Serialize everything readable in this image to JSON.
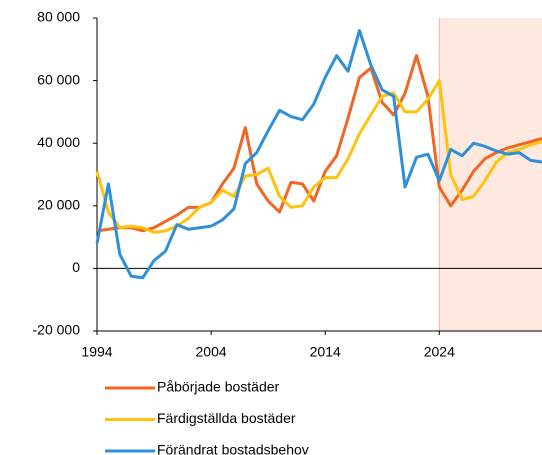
{
  "chart_data": {
    "type": "line",
    "x": [
      1994,
      1995,
      1996,
      1997,
      1998,
      1999,
      2000,
      2001,
      2002,
      2003,
      2004,
      2005,
      2006,
      2007,
      2008,
      2009,
      2010,
      2011,
      2012,
      2013,
      2014,
      2015,
      2016,
      2017,
      2018,
      2019,
      2020,
      2021,
      2022,
      2023,
      2024,
      2025,
      2026,
      2027,
      2028,
      2029,
      2030,
      2031,
      2032,
      2033
    ],
    "series": [
      {
        "name": "Påbörjade bostäder",
        "color": "#f26522",
        "values": [
          12000,
          12500,
          13000,
          13000,
          12000,
          13000,
          15000,
          17000,
          19500,
          19500,
          21000,
          27000,
          32000,
          45000,
          27000,
          21500,
          18000,
          27500,
          27000,
          21500,
          31000,
          36000,
          48000,
          61000,
          64000,
          53000,
          49000,
          56000,
          68000,
          55000,
          26000,
          20000,
          25000,
          31000,
          35000,
          37000,
          38500,
          39500,
          40500,
          41500
        ]
      },
      {
        "name": "Färdigställda bostäder",
        "color": "#ffc20e",
        "values": [
          31000,
          18000,
          13000,
          13500,
          13000,
          11500,
          12000,
          13500,
          16000,
          19500,
          21000,
          25000,
          23000,
          29500,
          30000,
          32000,
          23000,
          19500,
          20000,
          26000,
          29000,
          29000,
          35000,
          43000,
          49000,
          55000,
          56000,
          50000,
          50000,
          54000,
          60000,
          30000,
          22000,
          23000,
          28000,
          34000,
          37000,
          38000,
          39500,
          40500
        ]
      },
      {
        "name": "Förändrat bostadsbehov",
        "color": "#2f8fd8",
        "values": [
          8000,
          27000,
          4500,
          -2500,
          -3000,
          2500,
          5500,
          14000,
          12500,
          13000,
          13500,
          15500,
          19000,
          33500,
          37000,
          44000,
          50500,
          48500,
          47500,
          52500,
          61000,
          68000,
          63000,
          76000,
          65000,
          57000,
          55000,
          26000,
          35500,
          36500,
          28000,
          38000,
          36000,
          40000,
          39000,
          37500,
          36500,
          37000,
          34500,
          34000
        ]
      }
    ],
    "xlim": [
      1994,
      2033
    ],
    "xticks": [
      1994,
      2004,
      2014,
      2024
    ],
    "ylim": [
      -20000,
      80000
    ],
    "yticks": [
      {
        "value": -20000,
        "label": "-20 000"
      },
      {
        "value": 0,
        "label": "0"
      },
      {
        "value": 20000,
        "label": "20 000"
      },
      {
        "value": 40000,
        "label": "40 000"
      },
      {
        "value": 60000,
        "label": "60 000"
      },
      {
        "value": 80000,
        "label": "80 000"
      }
    ],
    "shaded_from": 2024,
    "shade_color": "#fde9df"
  }
}
